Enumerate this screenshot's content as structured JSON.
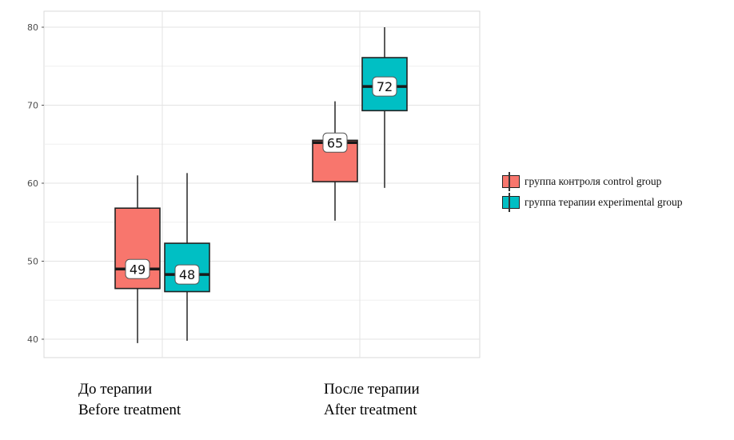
{
  "chart_data": {
    "type": "boxplot",
    "ylim": [
      39,
      81
    ],
    "yticks": [
      40,
      50,
      60,
      70,
      80
    ],
    "categories": [
      {
        "line1": "До терапии",
        "line2": "Before treatment"
      },
      {
        "line1": "После терапии",
        "line2": "After treatment"
      }
    ],
    "series": [
      {
        "name": "группа контроля  control group",
        "color": "#F8766D",
        "boxes": [
          {
            "min": 39.5,
            "q1": 46.5,
            "median": 49,
            "q3": 56.8,
            "max": 61,
            "label": "49"
          },
          {
            "min": 55.2,
            "q1": 60.2,
            "median": 65.2,
            "q3": 65.5,
            "max": 70.5,
            "label": "65"
          }
        ]
      },
      {
        "name": "группа терапии  experimental group",
        "color": "#00BFC4",
        "boxes": [
          {
            "min": 39.8,
            "q1": 46.1,
            "median": 48.3,
            "q3": 52.3,
            "max": 61.3,
            "label": "48"
          },
          {
            "min": 59.4,
            "q1": 69.3,
            "median": 72.4,
            "q3": 76.1,
            "max": 80,
            "label": "72"
          }
        ]
      }
    ],
    "grid": true,
    "legend_position": "right"
  }
}
